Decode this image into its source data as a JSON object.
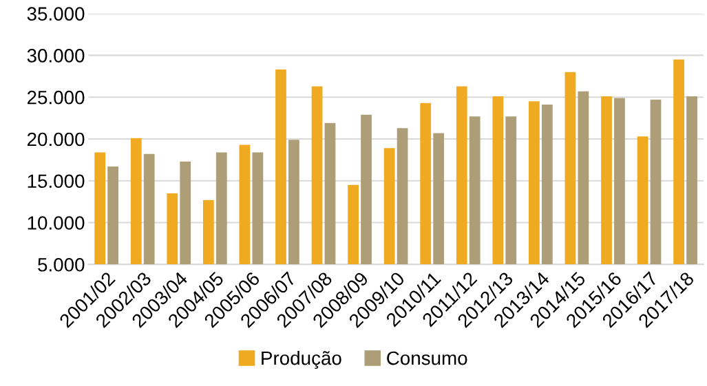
{
  "chart_data": {
    "type": "bar",
    "categories": [
      "2001/02",
      "2002/03",
      "2003/04",
      "2004/05",
      "2005/06",
      "2006/07",
      "2007/08",
      "2008/09",
      "2009/10",
      "2010/11",
      "2011/12",
      "2012/13",
      "2013/14",
      "2014/15",
      "2015/16",
      "2016/17",
      "2017/18"
    ],
    "series": [
      {
        "name": "Produção",
        "color": "#f0aa22",
        "values": [
          18400,
          20100,
          13500,
          12700,
          19300,
          28300,
          26300,
          14500,
          18900,
          24300,
          26300,
          25100,
          24500,
          28000,
          25100,
          20300,
          29500
        ]
      },
      {
        "name": "Consumo",
        "color": "#ad9e77",
        "values": [
          16700,
          18200,
          17300,
          18400,
          18400,
          19900,
          21900,
          22900,
          21300,
          20700,
          22700,
          22700,
          24100,
          25700,
          24900,
          24700,
          25100
        ]
      }
    ],
    "ylim": [
      5000,
      35000
    ],
    "yticks": [
      {
        "value": 5000,
        "label": "5.000"
      },
      {
        "value": 10000,
        "label": "10.000"
      },
      {
        "value": 15000,
        "label": "15.000"
      },
      {
        "value": 20000,
        "label": "20.000"
      },
      {
        "value": 25000,
        "label": "25.000"
      },
      {
        "value": 30000,
        "label": "30.000"
      },
      {
        "value": 35000,
        "label": "35.000"
      }
    ],
    "grid": "y",
    "legend": "bottom"
  }
}
